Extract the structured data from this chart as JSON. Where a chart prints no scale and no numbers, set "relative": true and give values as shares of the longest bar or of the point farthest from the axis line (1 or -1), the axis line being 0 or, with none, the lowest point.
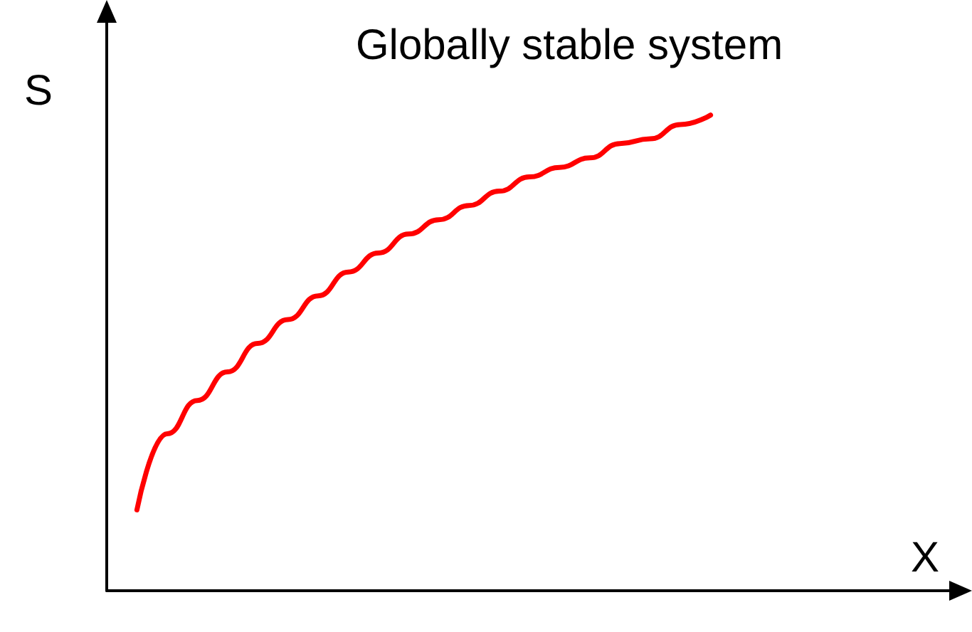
{
  "chart_data": {
    "type": "line",
    "title": "Globally stable system",
    "xlabel": "X",
    "ylabel": "S",
    "relative": true,
    "grid": false,
    "marker": "none",
    "line_style": "solid",
    "categories": [
      null,
      null,
      null,
      null,
      null,
      null,
      null,
      null,
      null,
      null,
      null,
      null,
      null,
      null,
      null,
      null,
      null,
      null,
      null,
      null,
      null,
      null,
      null,
      null,
      null,
      null,
      null,
      null,
      null
    ],
    "series": [
      {
        "color": "#ff0000",
        "values": [
          null,
          0.17,
          0.33,
          0.4,
          0.46,
          0.52,
          0.57,
          0.62,
          0.67,
          0.71,
          0.75,
          0.78,
          0.81,
          0.84,
          0.87,
          0.89,
          0.91,
          0.94,
          0.95,
          0.98,
          1,
          null,
          null,
          null,
          null,
          null,
          null,
          null,
          null
        ]
      }
    ]
  }
}
